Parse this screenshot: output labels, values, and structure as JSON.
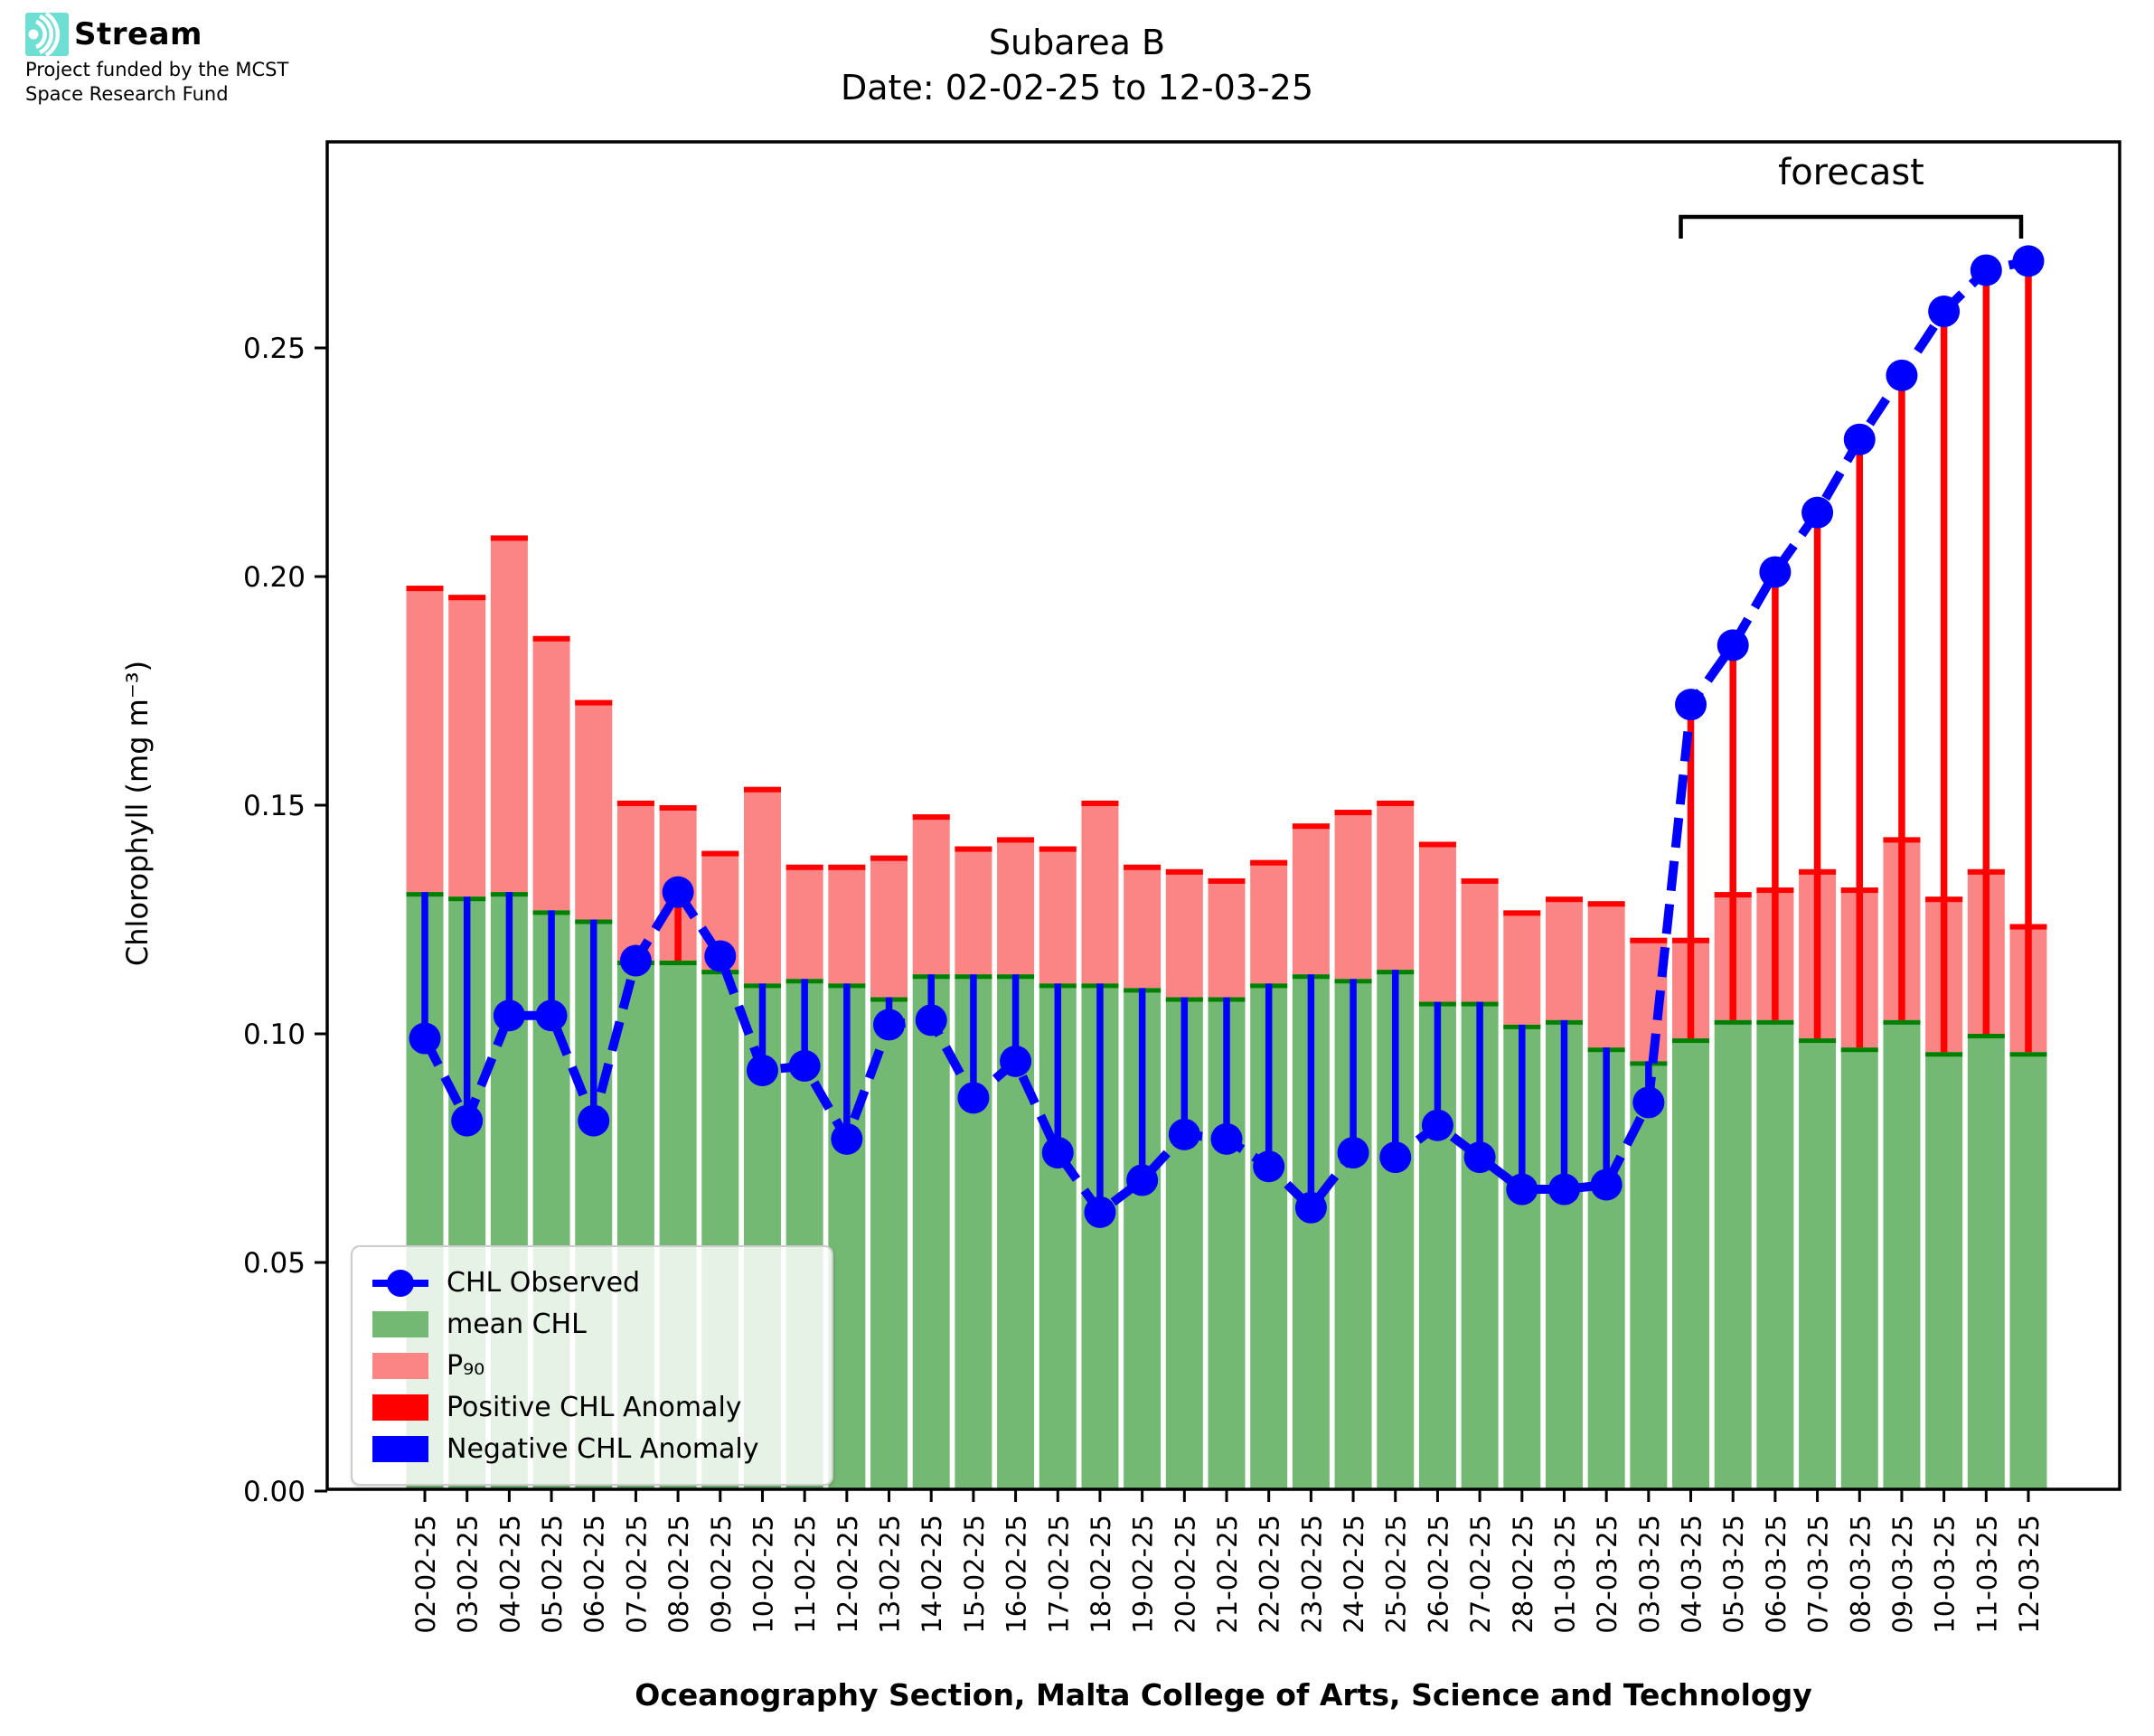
{
  "logo": {
    "brand": "Stream",
    "subtitle_line1": "Project funded by the MCST",
    "subtitle_line2": "Space Research Fund",
    "accent_color": "#6fdfd3"
  },
  "title": {
    "line1": "Subarea B",
    "line2": "Date: 02-02-25 to 12-03-25"
  },
  "chart_data": {
    "type": "bar",
    "title": "Subarea B",
    "subtitle": "Date: 02-02-25 to 12-03-25",
    "xlabel": "Oceanography Section, Malta College of Arts, Science and Technology",
    "ylabel": "Chlorophyll (mg m⁻³)",
    "ylim": [
      0,
      0.295
    ],
    "yticks": [
      0.0,
      0.05,
      0.1,
      0.15,
      0.2,
      0.25
    ],
    "grid": false,
    "categories": [
      "02-02-25",
      "03-02-25",
      "04-02-25",
      "05-02-25",
      "06-02-25",
      "07-02-25",
      "08-02-25",
      "09-02-25",
      "10-02-25",
      "11-02-25",
      "12-02-25",
      "13-02-25",
      "14-02-25",
      "15-02-25",
      "16-02-25",
      "17-02-25",
      "18-02-25",
      "19-02-25",
      "20-02-25",
      "21-02-25",
      "22-02-25",
      "23-02-25",
      "24-02-25",
      "25-02-25",
      "26-02-25",
      "27-02-25",
      "28-02-25",
      "01-03-25",
      "02-03-25",
      "03-03-25",
      "04-03-25",
      "05-03-25",
      "06-03-25",
      "07-03-25",
      "08-03-25",
      "09-03-25",
      "10-03-25",
      "11-03-25",
      "12-03-25"
    ],
    "series": [
      {
        "name": "P₉₀",
        "type": "bar",
        "color": "#fb8585",
        "edge_color": "#ff0000",
        "values": [
          0.198,
          0.196,
          0.209,
          0.187,
          0.173,
          0.151,
          0.15,
          0.14,
          0.154,
          0.137,
          0.137,
          0.139,
          0.148,
          0.141,
          0.143,
          0.141,
          0.151,
          0.137,
          0.136,
          0.134,
          0.138,
          0.146,
          0.149,
          0.151,
          0.142,
          0.134,
          0.127,
          0.13,
          0.129,
          0.121,
          0.121,
          0.131,
          0.132,
          0.136,
          0.132,
          0.143,
          0.13,
          0.136,
          0.124
        ]
      },
      {
        "name": "mean CHL",
        "type": "bar",
        "color": "#74b973",
        "edge_color": "#008000",
        "values": [
          0.131,
          0.13,
          0.131,
          0.127,
          0.125,
          0.116,
          0.116,
          0.114,
          0.111,
          0.112,
          0.111,
          0.108,
          0.113,
          0.113,
          0.113,
          0.111,
          0.111,
          0.11,
          0.108,
          0.108,
          0.111,
          0.113,
          0.112,
          0.114,
          0.107,
          0.107,
          0.102,
          0.103,
          0.097,
          0.094,
          0.099,
          0.103,
          0.103,
          0.099,
          0.097,
          0.103,
          0.096,
          0.1,
          0.096
        ]
      },
      {
        "name": "CHL Observed",
        "type": "line",
        "color": "#0000ff",
        "values": [
          0.099,
          0.081,
          0.104,
          0.104,
          0.081,
          0.116,
          0.131,
          0.117,
          0.092,
          0.093,
          0.077,
          0.102,
          0.103,
          0.086,
          0.094,
          0.074,
          0.061,
          0.068,
          0.078,
          0.077,
          0.071,
          0.062,
          0.074,
          0.073,
          0.08,
          0.073,
          0.066,
          0.066,
          0.067,
          0.085,
          0.172,
          0.185,
          0.201,
          0.214,
          0.23,
          0.244,
          0.258,
          0.267,
          0.269
        ]
      }
    ],
    "anomaly": {
      "positive_label": "Positive CHL Anomaly",
      "negative_label": "Negative CHL Anomaly",
      "positive_color": "#ff0000",
      "negative_color": "#0000ff"
    },
    "annotations": {
      "forecast_label": "forecast",
      "forecast_start": "04-03-25",
      "forecast_end": "12-03-25",
      "forecast_start_index": 30
    },
    "legend": {
      "position": "lower left",
      "entries": [
        "CHL Observed",
        "mean CHL",
        "P₉₀",
        "Positive CHL Anomaly",
        "Negative CHL Anomaly"
      ]
    }
  }
}
